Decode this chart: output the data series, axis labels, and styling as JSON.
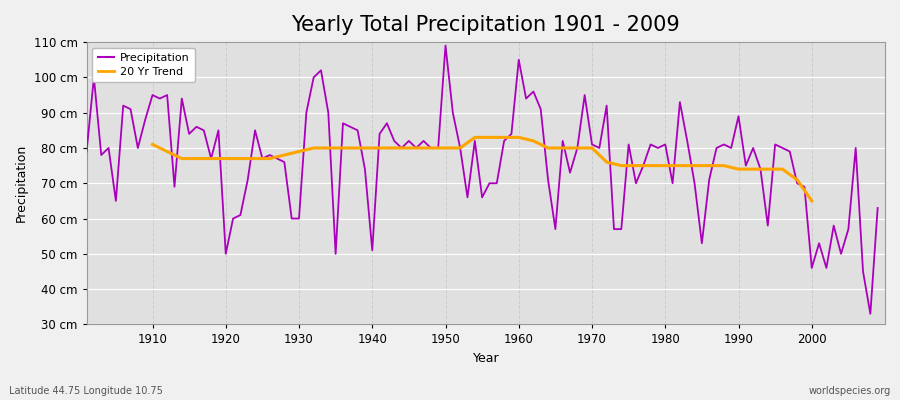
{
  "title": "Yearly Total Precipitation 1901 - 2009",
  "xlabel": "Year",
  "ylabel": "Precipitation",
  "subtitle_left": "Latitude 44.75 Longitude 10.75",
  "subtitle_right": "worldspecies.org",
  "years": [
    1901,
    1902,
    1903,
    1904,
    1905,
    1906,
    1907,
    1908,
    1909,
    1910,
    1911,
    1912,
    1913,
    1914,
    1915,
    1916,
    1917,
    1918,
    1919,
    1920,
    1921,
    1922,
    1923,
    1924,
    1925,
    1926,
    1927,
    1928,
    1929,
    1930,
    1931,
    1932,
    1933,
    1934,
    1935,
    1936,
    1937,
    1938,
    1939,
    1940,
    1941,
    1942,
    1943,
    1944,
    1945,
    1946,
    1947,
    1948,
    1949,
    1950,
    1951,
    1952,
    1953,
    1954,
    1955,
    1956,
    1957,
    1958,
    1959,
    1960,
    1961,
    1962,
    1963,
    1964,
    1965,
    1966,
    1967,
    1968,
    1969,
    1970,
    1971,
    1972,
    1973,
    1974,
    1975,
    1976,
    1977,
    1978,
    1979,
    1980,
    1981,
    1982,
    1983,
    1984,
    1985,
    1986,
    1987,
    1988,
    1989,
    1990,
    1991,
    1992,
    1993,
    1994,
    1995,
    1996,
    1997,
    1998,
    1999,
    2000,
    2001,
    2002,
    2003,
    2004,
    2005,
    2006,
    2007,
    2008,
    2009
  ],
  "precipitation": [
    79,
    100,
    78,
    80,
    65,
    92,
    91,
    80,
    88,
    95,
    94,
    95,
    69,
    94,
    84,
    86,
    85,
    77,
    85,
    50,
    60,
    61,
    71,
    85,
    77,
    78,
    77,
    76,
    60,
    60,
    90,
    100,
    102,
    90,
    50,
    87,
    86,
    85,
    74,
    51,
    84,
    87,
    82,
    80,
    82,
    80,
    82,
    80,
    80,
    109,
    90,
    80,
    66,
    82,
    66,
    70,
    70,
    82,
    84,
    105,
    94,
    96,
    91,
    71,
    57,
    82,
    73,
    80,
    95,
    81,
    80,
    92,
    57,
    57,
    81,
    70,
    75,
    81,
    80,
    81,
    70,
    93,
    82,
    70,
    53,
    71,
    80,
    81,
    80,
    89,
    75,
    80,
    74,
    58,
    81,
    80,
    79,
    70,
    69,
    46,
    53,
    46,
    58,
    50,
    57,
    80,
    45,
    33,
    63
  ],
  "trend_years": [
    1910,
    1912,
    1914,
    1916,
    1918,
    1920,
    1922,
    1924,
    1926,
    1928,
    1930,
    1932,
    1934,
    1936,
    1938,
    1940,
    1942,
    1944,
    1946,
    1948,
    1950,
    1952,
    1954,
    1956,
    1958,
    1960,
    1962,
    1964,
    1966,
    1968,
    1970,
    1972,
    1974,
    1976,
    1978,
    1980,
    1982,
    1984,
    1986,
    1988,
    1990,
    1992,
    1994,
    1996,
    1998,
    2000
  ],
  "trend_values": [
    81,
    79,
    77,
    77,
    77,
    77,
    77,
    77,
    77,
    78,
    79,
    80,
    80,
    80,
    80,
    80,
    80,
    80,
    80,
    80,
    80,
    80,
    83,
    83,
    83,
    83,
    82,
    80,
    80,
    80,
    80,
    76,
    75,
    75,
    75,
    75,
    75,
    75,
    75,
    75,
    74,
    74,
    74,
    74,
    71,
    65
  ],
  "precip_color": "#AA00BB",
  "trend_color": "#FFA500",
  "bg_color": "#F0F0F0",
  "plot_bg_color": "#E0E0E0",
  "grid_color_h": "#FFFFFF",
  "grid_color_v": "#CCCCCC",
  "ylim": [
    30,
    110
  ],
  "yticks": [
    30,
    40,
    50,
    60,
    70,
    80,
    90,
    100,
    110
  ],
  "xticks": [
    1910,
    1920,
    1930,
    1940,
    1950,
    1960,
    1970,
    1980,
    1990,
    2000
  ],
  "title_fontsize": 15,
  "label_fontsize": 9,
  "tick_fontsize": 8.5
}
